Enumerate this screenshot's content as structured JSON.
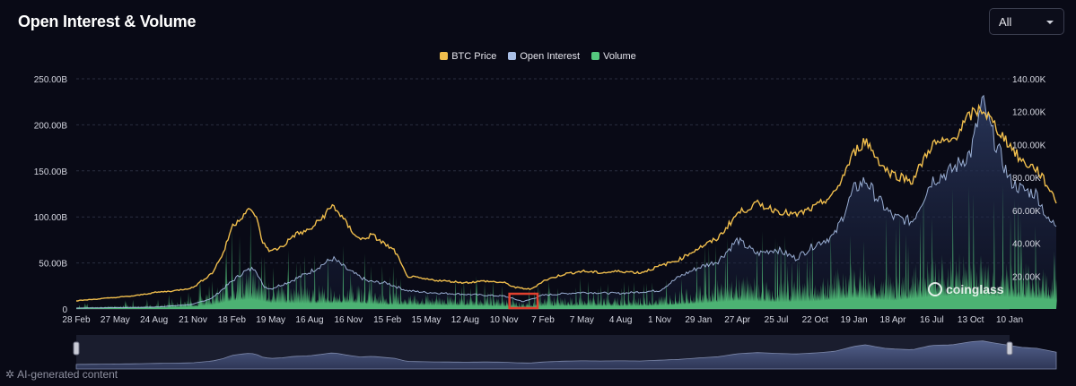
{
  "header": {
    "title": "Open Interest & Volume"
  },
  "range_select": {
    "value": "All"
  },
  "footer": {
    "ai_note": "AI-generated content",
    "icon": "sparkle-icon"
  },
  "colors": {
    "btc": "#f0be4d",
    "oi": "#a9bfe6",
    "volume": "#55c87e",
    "highlight": "#e0402e"
  },
  "chart_data": {
    "type": "line",
    "title": "Open Interest & Volume",
    "legend": {
      "position": "top-center",
      "entries": [
        "BTC Price",
        "Open Interest",
        "Volume"
      ]
    },
    "grid": {
      "horizontal": true,
      "vertical": false
    },
    "x_ticks": [
      "28 Feb",
      "27 May",
      "24 Aug",
      "21 Nov",
      "18 Feb",
      "19 May",
      "16 Aug",
      "16 Nov",
      "15 Feb",
      "15 May",
      "12 Aug",
      "10 Nov",
      "7 Feb",
      "7 May",
      "4 Aug",
      "1 Nov",
      "29 Jan",
      "27 Apr",
      "25 Jul",
      "22 Oct",
      "19 Jan",
      "18 Apr",
      "16 Jul",
      "13 Oct",
      "10 Jan"
    ],
    "y_left": {
      "ticks": [
        "0",
        "50.00B",
        "100.00B",
        "150.00B",
        "200.00B",
        "250.00B"
      ],
      "range": [
        0,
        250
      ]
    },
    "y_right": {
      "ticks": [
        "20.00K",
        "40.00K",
        "60.00K",
        "80.00K",
        "100.00K",
        "120.00K",
        "140.00K"
      ],
      "range": [
        0,
        140
      ]
    },
    "watermark": "coinglass",
    "highlight_range": [
      "10 Nov",
      "7 Feb"
    ],
    "series": [
      {
        "name": "BTC Price",
        "axis": "right",
        "unit": "K",
        "points": [
          [
            0,
            5
          ],
          [
            1,
            7
          ],
          [
            1.5,
            8
          ],
          [
            2,
            10
          ],
          [
            2.5,
            11
          ],
          [
            3,
            13
          ],
          [
            3.5,
            22
          ],
          [
            3.8,
            35
          ],
          [
            4,
            50
          ],
          [
            4.2,
            55
          ],
          [
            4.4,
            60
          ],
          [
            4.6,
            58
          ],
          [
            4.8,
            40
          ],
          [
            5,
            35
          ],
          [
            5.3,
            38
          ],
          [
            5.6,
            45
          ],
          [
            6,
            48
          ],
          [
            6.3,
            55
          ],
          [
            6.6,
            63
          ],
          [
            6.8,
            57
          ],
          [
            7,
            50
          ],
          [
            7.3,
            42
          ],
          [
            7.6,
            45
          ],
          [
            7.9,
            40
          ],
          [
            8.2,
            35
          ],
          [
            8.5,
            20
          ],
          [
            9,
            18
          ],
          [
            9.5,
            17
          ],
          [
            10,
            16
          ],
          [
            10.5,
            17
          ],
          [
            11,
            16
          ],
          [
            11.3,
            13
          ],
          [
            11.7,
            12
          ],
          [
            12,
            17
          ],
          [
            12.5,
            21
          ],
          [
            13,
            23
          ],
          [
            13.5,
            22
          ],
          [
            14,
            23
          ],
          [
            14.5,
            22
          ],
          [
            15,
            26
          ],
          [
            15.5,
            30
          ],
          [
            16,
            37
          ],
          [
            16.5,
            43
          ],
          [
            17,
            58
          ],
          [
            17.5,
            64
          ],
          [
            18,
            60
          ],
          [
            18.5,
            57
          ],
          [
            19,
            62
          ],
          [
            19.5,
            70
          ],
          [
            20,
            95
          ],
          [
            20.3,
            103
          ],
          [
            20.5,
            95
          ],
          [
            20.8,
            85
          ],
          [
            21,
            82
          ],
          [
            21.5,
            78
          ],
          [
            22,
            100
          ],
          [
            22.5,
            102
          ],
          [
            23,
            118
          ],
          [
            23.3,
            122
          ],
          [
            23.6,
            112
          ],
          [
            24,
            100
          ],
          [
            24.3,
            90
          ],
          [
            24.7,
            85
          ],
          [
            25,
            74
          ],
          [
            25.2,
            66
          ]
        ]
      },
      {
        "name": "Open Interest",
        "axis": "left",
        "unit": "B",
        "points": [
          [
            0,
            1
          ],
          [
            2,
            2
          ],
          [
            3,
            5
          ],
          [
            3.5,
            12
          ],
          [
            4,
            30
          ],
          [
            4.3,
            40
          ],
          [
            4.6,
            45
          ],
          [
            4.8,
            25
          ],
          [
            5,
            22
          ],
          [
            5.5,
            30
          ],
          [
            6,
            40
          ],
          [
            6.6,
            55
          ],
          [
            7,
            42
          ],
          [
            7.5,
            30
          ],
          [
            8,
            28
          ],
          [
            8.5,
            20
          ],
          [
            9,
            18
          ],
          [
            10,
            16
          ],
          [
            11,
            14
          ],
          [
            11.5,
            8
          ],
          [
            12,
            15
          ],
          [
            13,
            18
          ],
          [
            14,
            17
          ],
          [
            15,
            20
          ],
          [
            15.5,
            35
          ],
          [
            16,
            45
          ],
          [
            16.5,
            52
          ],
          [
            17,
            75
          ],
          [
            17.5,
            60
          ],
          [
            18,
            65
          ],
          [
            18.5,
            55
          ],
          [
            19,
            70
          ],
          [
            19.5,
            80
          ],
          [
            20,
            130
          ],
          [
            20.3,
            140
          ],
          [
            20.6,
            120
          ],
          [
            21,
            100
          ],
          [
            21.5,
            95
          ],
          [
            22,
            140
          ],
          [
            22.5,
            150
          ],
          [
            23,
            170
          ],
          [
            23.3,
            225
          ],
          [
            23.6,
            185
          ],
          [
            24,
            140
          ],
          [
            24.3,
            130
          ],
          [
            24.7,
            125
          ],
          [
            25,
            95
          ],
          [
            25.2,
            92
          ]
        ]
      },
      {
        "name": "Volume",
        "axis": "left",
        "unit": "B",
        "points": [
          [
            0,
            2
          ],
          [
            2,
            4
          ],
          [
            3,
            8
          ],
          [
            3.5,
            15
          ],
          [
            4,
            30
          ],
          [
            4.5,
            35
          ],
          [
            5,
            22
          ],
          [
            6,
            20
          ],
          [
            7,
            22
          ],
          [
            8,
            15
          ],
          [
            9,
            13
          ],
          [
            10,
            12
          ],
          [
            11,
            9
          ],
          [
            11.5,
            6
          ],
          [
            12,
            10
          ],
          [
            13,
            11
          ],
          [
            14,
            10
          ],
          [
            15,
            12
          ],
          [
            16,
            20
          ],
          [
            17,
            30
          ],
          [
            18,
            25
          ],
          [
            19,
            28
          ],
          [
            20,
            40
          ],
          [
            21,
            30
          ],
          [
            22,
            45
          ],
          [
            23,
            50
          ],
          [
            24,
            42
          ],
          [
            25,
            35
          ],
          [
            25.2,
            30
          ]
        ]
      }
    ]
  }
}
